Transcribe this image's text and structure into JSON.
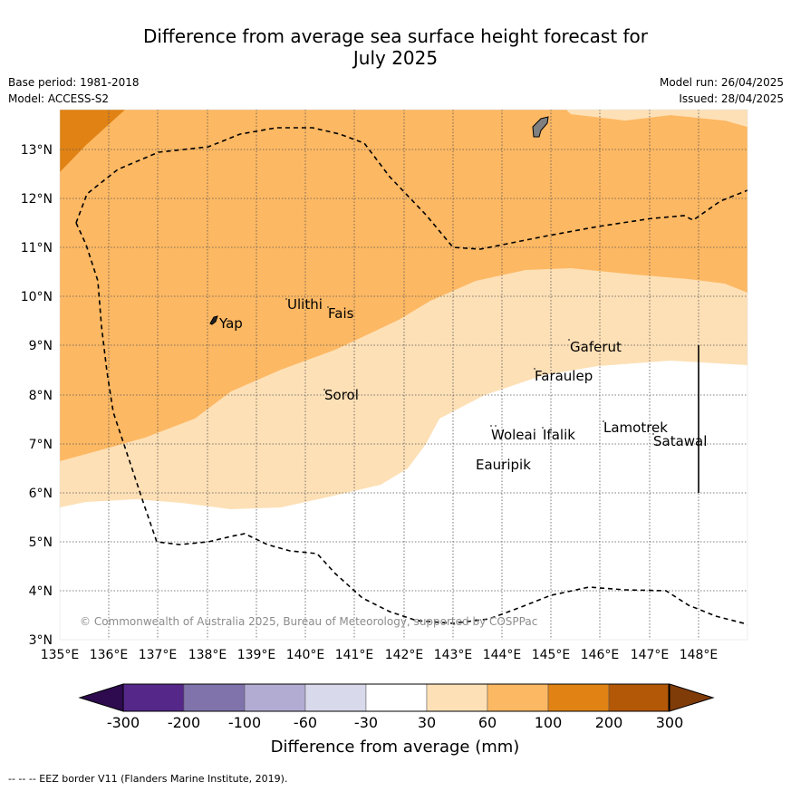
{
  "title_line1": "Difference from average sea surface height forecast for",
  "title_line2": "July 2025",
  "base_period": "Base period: 1981-2018",
  "model": "Model: ACCESS-S2",
  "model_run": "Model run: 26/04/2025",
  "issued": "Issued: 28/04/2025",
  "copyright": "© Commonwealth of Australia 2025, Bureau of Meteorology, supported by COSPPac",
  "footer_legend": "--  --  -- EEZ border V11 (Flanders Marine Institute, 2019).",
  "colorbar_label": "Difference from average (mm)",
  "lon_ticks": [
    "135°E",
    "136°E",
    "137°E",
    "138°E",
    "139°E",
    "140°E",
    "141°E",
    "142°E",
    "143°E",
    "144°E",
    "145°E",
    "146°E",
    "147°E",
    "148°E"
  ],
  "lat_ticks": [
    "3°N",
    "4°N",
    "5°N",
    "6°N",
    "7°N",
    "8°N",
    "9°N",
    "10°N",
    "11°N",
    "12°N",
    "13°N"
  ],
  "colorbar": {
    "tick_labels": [
      "-300",
      "-200",
      "-100",
      "-60",
      "-30",
      "30",
      "60",
      "100",
      "200",
      "300"
    ],
    "bins": [
      {
        "range": "< -300",
        "color": "#2d0b4e"
      },
      {
        "range": "-300 to -200",
        "color": "#542788"
      },
      {
        "range": "-200 to -100",
        "color": "#8073ac"
      },
      {
        "range": "-100 to -60",
        "color": "#b2abd2"
      },
      {
        "range": "-60 to -30",
        "color": "#d8daeb"
      },
      {
        "range": "-30 to 30",
        "color": "#ffffff"
      },
      {
        "range": "30 to 60",
        "color": "#fee0b6"
      },
      {
        "range": "60 to 100",
        "color": "#fdb863"
      },
      {
        "range": "100 to 200",
        "color": "#e08214"
      },
      {
        "range": "200 to 300",
        "color": "#b35806"
      },
      {
        "range": "> 300",
        "color": "#7f3b08"
      }
    ]
  },
  "places": [
    "Yap",
    "Ulithi",
    "Fais",
    "Sorol",
    "Gaferut",
    "Faraulep",
    "Woleai",
    "Ifalik",
    "Lamotrek",
    "Satawal",
    "Eauripik"
  ]
}
